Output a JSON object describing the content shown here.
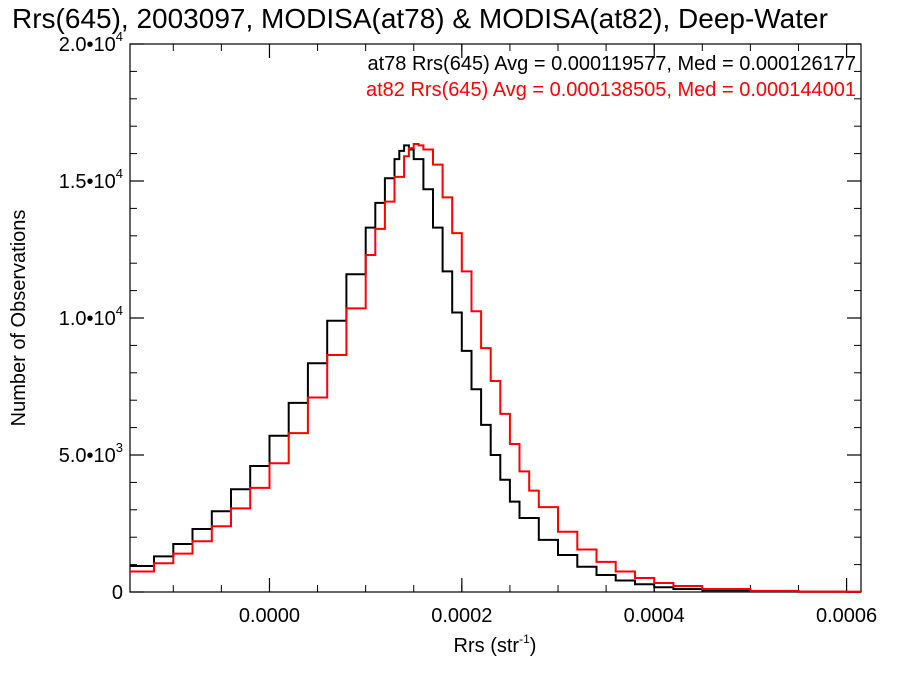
{
  "chart_data": {
    "type": "line",
    "title": "Rrs(645), 2003097, MODISA(at78) & MODISA(at82), Deep-Water",
    "xlabel_main": "Rrs (str",
    "xlabel_sup": "-1",
    "xlabel_close": ")",
    "ylabel": "Number of Observations",
    "xlim": [
      -0.000145,
      0.000615
    ],
    "ylim": [
      0,
      20000
    ],
    "x_ticks": [
      {
        "value": 0.0,
        "label": "0.0000"
      },
      {
        "value": 0.0002,
        "label": "0.0002"
      },
      {
        "value": 0.0004,
        "label": "0.0004"
      },
      {
        "value": 0.0006,
        "label": "0.0006"
      }
    ],
    "y_ticks": [
      {
        "value": 0,
        "mantissa": "0",
        "exponent": ""
      },
      {
        "value": 5000,
        "mantissa": "5.0•10",
        "exponent": "3"
      },
      {
        "value": 10000,
        "mantissa": "1.0•10",
        "exponent": "4"
      },
      {
        "value": 15000,
        "mantissa": "1.5•10",
        "exponent": "4"
      },
      {
        "value": 20000,
        "mantissa": "2.0•10",
        "exponent": "4"
      }
    ],
    "x_minor_step": 5e-05,
    "y_minor_step": 1000,
    "annotations": [
      {
        "text": "at78 Rrs(645) Avg = 0.000119577, Med = 0.000126177",
        "color": "#000000"
      },
      {
        "text": "at82 Rrs(645) Avg = 0.000138505, Med = 0.000144001",
        "color": "#ff0000"
      }
    ],
    "series": [
      {
        "color": "#000000",
        "x": [
          -0.000145,
          -0.00012,
          -0.0001,
          -8e-05,
          -6e-05,
          -4e-05,
          -2e-05,
          0.0,
          2e-05,
          4e-05,
          6e-05,
          8e-05,
          0.0001,
          0.00011,
          0.00012,
          0.00013,
          0.000135,
          0.00014,
          0.000145,
          0.00015,
          0.00016,
          0.00017,
          0.00018,
          0.00019,
          0.0002,
          0.00021,
          0.00022,
          0.00023,
          0.00024,
          0.00025,
          0.00026,
          0.00028,
          0.0003,
          0.00032,
          0.00034,
          0.00036,
          0.00038,
          0.0004,
          0.00042,
          0.00045,
          0.0005,
          0.00055,
          0.0006,
          0.000615
        ],
        "y": [
          950,
          1300,
          1750,
          2300,
          2950,
          3750,
          4600,
          5700,
          6900,
          8350,
          9900,
          11600,
          13300,
          14200,
          15100,
          15800,
          16100,
          16300,
          16150,
          15800,
          14700,
          13300,
          11700,
          10200,
          8800,
          7400,
          6100,
          5000,
          4100,
          3300,
          2700,
          1900,
          1350,
          920,
          620,
          420,
          280,
          170,
          110,
          60,
          25,
          10,
          5,
          3
        ]
      },
      {
        "color": "#ff0000",
        "x": [
          -0.000145,
          -0.00012,
          -0.0001,
          -8e-05,
          -6e-05,
          -4e-05,
          -2e-05,
          0.0,
          2e-05,
          4e-05,
          6e-05,
          8e-05,
          0.0001,
          0.00011,
          0.00012,
          0.00013,
          0.00014,
          0.000145,
          0.00015,
          0.000155,
          0.00016,
          0.00017,
          0.00018,
          0.00019,
          0.0002,
          0.00021,
          0.00022,
          0.00023,
          0.00024,
          0.00025,
          0.00026,
          0.00027,
          0.00028,
          0.0003,
          0.00032,
          0.00034,
          0.00036,
          0.00038,
          0.0004,
          0.00042,
          0.00045,
          0.0005,
          0.00055,
          0.0006,
          0.000615
        ],
        "y": [
          750,
          1050,
          1400,
          1850,
          2400,
          3050,
          3800,
          4700,
          5800,
          7100,
          8650,
          10350,
          12300,
          13250,
          14250,
          15150,
          15900,
          16200,
          16350,
          16300,
          16150,
          15600,
          14400,
          13100,
          11700,
          10250,
          8900,
          7700,
          6500,
          5400,
          4400,
          3700,
          3100,
          2200,
          1550,
          1100,
          750,
          510,
          330,
          220,
          110,
          40,
          15,
          6,
          3
        ]
      }
    ]
  }
}
